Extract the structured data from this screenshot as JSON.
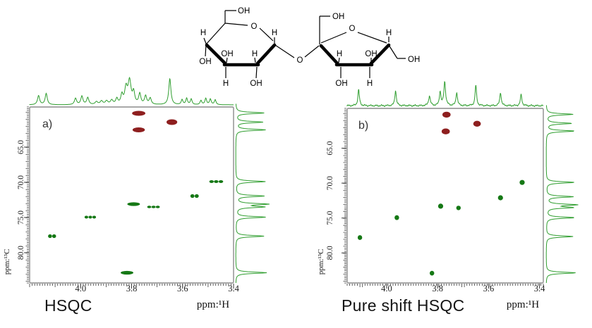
{
  "page": {
    "background": "#ffffff"
  },
  "style": {
    "trace_green": "#2f9e2f",
    "peak_red": "#8e1f1f",
    "peak_green": "#157815",
    "frame_gray": "#8c8c8c",
    "tick_color": "#3a3a3a",
    "bond_color": "#000000"
  },
  "molecule": {
    "name": "sucrose (glucopyranosyl-fructofuranoside) structure",
    "labels": [
      {
        "text": "OH"
      },
      {
        "text": "H"
      },
      {
        "text": "O"
      },
      {
        "text": "H"
      },
      {
        "text": "OH"
      },
      {
        "text": "OH"
      },
      {
        "text": "H"
      },
      {
        "text": "H"
      },
      {
        "text": "OH"
      },
      {
        "text": "O"
      },
      {
        "text": "OH"
      },
      {
        "text": "O"
      },
      {
        "text": "H"
      },
      {
        "text": "H"
      },
      {
        "text": "OH"
      },
      {
        "text": "OH"
      },
      {
        "text": "OH"
      },
      {
        "text": "H"
      }
    ]
  },
  "chart_data": [
    {
      "id": "a",
      "type": "scatter",
      "panel_label": "a)",
      "title": "HSQC",
      "xlabel": "ppm:¹H",
      "ylabel": "ppm:¹³C",
      "xlim": [
        4.2,
        3.4
      ],
      "ylim": [
        59.3,
        84.3
      ],
      "x_ticks": [
        {
          "v": 4.0,
          "label": "4.0"
        },
        {
          "v": 3.8,
          "label": "3.8"
        },
        {
          "v": 3.6,
          "label": "3.6"
        },
        {
          "v": 3.4,
          "label": "3.4"
        }
      ],
      "y_ticks": [
        {
          "v": 65.0,
          "label": "65.0"
        },
        {
          "v": 70.0,
          "label": "70.0"
        },
        {
          "v": 75.0,
          "label": "75.0"
        },
        {
          "v": 80.0,
          "label": "80.0"
        }
      ],
      "series": [
        {
          "name": "CH2 cross-peaks (opposite phase)",
          "color": "#8e1f1f",
          "points": [
            {
              "x": 3.772,
              "y": 60.2,
              "n": 1,
              "w": 0.052,
              "ry": 3.5
            },
            {
              "x": 3.642,
              "y": 61.45,
              "n": 1,
              "w": 0.042,
              "ry": 4.0
            },
            {
              "x": 3.772,
              "y": 62.55,
              "n": 1,
              "w": 0.048,
              "ry": 3.5
            }
          ]
        },
        {
          "name": "CH cross-peaks",
          "color": "#157815",
          "points": [
            {
              "x": 3.468,
              "y": 69.9,
              "n": 3,
              "w": 0.055,
              "ry": 2.0
            },
            {
              "x": 3.553,
              "y": 71.95,
              "n": 2,
              "w": 0.034,
              "ry": 2.6
            },
            {
              "x": 3.792,
              "y": 73.1,
              "n": 1,
              "w": 0.05,
              "ry": 2.6
            },
            {
              "x": 3.714,
              "y": 73.5,
              "n": 3,
              "w": 0.05,
              "ry": 1.8
            },
            {
              "x": 3.962,
              "y": 74.95,
              "n": 3,
              "w": 0.046,
              "ry": 2.0
            },
            {
              "x": 4.112,
              "y": 77.65,
              "n": 2,
              "w": 0.032,
              "ry": 2.6
            },
            {
              "x": 3.818,
              "y": 82.85,
              "n": 1,
              "w": 0.05,
              "ry": 2.6
            }
          ]
        }
      ],
      "top_trace": {
        "color": "#2f9e2f",
        "noise": false,
        "peaks": [
          {
            "x": 4.165,
            "h": 13,
            "w": 0.005
          },
          {
            "x": 4.135,
            "h": 16,
            "w": 0.005
          },
          {
            "x": 4.02,
            "h": 9,
            "w": 0.005
          },
          {
            "x": 3.995,
            "h": 12,
            "w": 0.005
          },
          {
            "x": 3.972,
            "h": 10,
            "w": 0.005
          },
          {
            "x": 3.938,
            "h": 4,
            "w": 0.006
          },
          {
            "x": 3.918,
            "h": 5,
            "w": 0.006
          },
          {
            "x": 3.898,
            "h": 5,
            "w": 0.006
          },
          {
            "x": 3.878,
            "h": 6,
            "w": 0.006
          },
          {
            "x": 3.858,
            "h": 8,
            "w": 0.005
          },
          {
            "x": 3.838,
            "h": 13,
            "w": 0.005
          },
          {
            "x": 3.822,
            "h": 22,
            "w": 0.006
          },
          {
            "x": 3.808,
            "h": 33,
            "w": 0.007
          },
          {
            "x": 3.792,
            "h": 16,
            "w": 0.005
          },
          {
            "x": 3.768,
            "h": 15,
            "w": 0.005
          },
          {
            "x": 3.745,
            "h": 12,
            "w": 0.005
          },
          {
            "x": 3.727,
            "h": 9,
            "w": 0.005
          },
          {
            "x": 3.65,
            "h": 37,
            "w": 0.005
          },
          {
            "x": 3.602,
            "h": 7,
            "w": 0.004
          },
          {
            "x": 3.584,
            "h": 9,
            "w": 0.004
          },
          {
            "x": 3.566,
            "h": 8,
            "w": 0.004
          },
          {
            "x": 3.528,
            "h": 6,
            "w": 0.004
          },
          {
            "x": 3.509,
            "h": 9,
            "w": 0.004
          },
          {
            "x": 3.491,
            "h": 8,
            "w": 0.004
          },
          {
            "x": 3.472,
            "h": 7,
            "w": 0.004
          }
        ]
      },
      "side_trace": {
        "color": "#2f9e2f",
        "peaks": [
          {
            "y": 60.15,
            "len": 40
          },
          {
            "y": 61.45,
            "len": 38
          },
          {
            "y": 62.55,
            "len": 42
          },
          {
            "y": 69.9,
            "len": 42
          },
          {
            "y": 71.95,
            "len": 40
          },
          {
            "y": 73.1,
            "len": 44
          },
          {
            "y": 73.5,
            "len": 38
          },
          {
            "y": 74.95,
            "len": 42
          },
          {
            "y": 77.65,
            "len": 40
          },
          {
            "y": 82.85,
            "len": 44
          }
        ]
      }
    },
    {
      "id": "b",
      "type": "scatter",
      "panel_label": "b)",
      "title": "Pure shift HSQC",
      "xlabel": "ppm:¹H",
      "ylabel": "ppm:¹³C",
      "xlim": [
        4.155,
        3.385
      ],
      "ylim": [
        59.3,
        84.3
      ],
      "x_ticks": [
        {
          "v": 4.0,
          "label": "4.0"
        },
        {
          "v": 3.8,
          "label": "3.8"
        },
        {
          "v": 3.6,
          "label": "3.6"
        },
        {
          "v": 3.4,
          "label": "3.4"
        }
      ],
      "y_ticks": [
        {
          "v": 65.0,
          "label": "65.0"
        },
        {
          "v": 70.0,
          "label": "70.0"
        },
        {
          "v": 75.0,
          "label": "75.0"
        },
        {
          "v": 80.0,
          "label": "80.0"
        }
      ],
      "series": [
        {
          "name": "CH2 cross-peaks (opposite phase)",
          "color": "#8e1f1f",
          "points": [
            {
              "x": 3.765,
              "y": 60.2,
              "n": 1,
              "w": 0.032,
              "ry": 4.2
            },
            {
              "x": 3.645,
              "y": 61.5,
              "n": 1,
              "w": 0.03,
              "ry": 4.2
            },
            {
              "x": 3.768,
              "y": 62.6,
              "n": 1,
              "w": 0.032,
              "ry": 4.2
            }
          ]
        },
        {
          "name": "CH cross-peaks",
          "color": "#157815",
          "points": [
            {
              "x": 3.468,
              "y": 69.9,
              "n": 1,
              "w": 0.02,
              "ry": 3.6
            },
            {
              "x": 3.553,
              "y": 72.1,
              "n": 1,
              "w": 0.02,
              "ry": 3.6
            },
            {
              "x": 3.788,
              "y": 73.3,
              "n": 1,
              "w": 0.02,
              "ry": 3.6
            },
            {
              "x": 3.718,
              "y": 73.55,
              "n": 1,
              "w": 0.018,
              "ry": 3.2
            },
            {
              "x": 3.96,
              "y": 74.95,
              "n": 1,
              "w": 0.018,
              "ry": 3.4
            },
            {
              "x": 4.105,
              "y": 77.8,
              "n": 1,
              "w": 0.018,
              "ry": 3.4
            },
            {
              "x": 3.822,
              "y": 82.9,
              "n": 1,
              "w": 0.018,
              "ry": 3.4
            }
          ]
        }
      ],
      "top_trace": {
        "color": "#2f9e2f",
        "noise": true,
        "peaks": [
          {
            "x": 4.11,
            "h": 23,
            "w": 0.0035
          },
          {
            "x": 3.965,
            "h": 22,
            "w": 0.0035
          },
          {
            "x": 3.832,
            "h": 14,
            "w": 0.004
          },
          {
            "x": 3.79,
            "h": 20,
            "w": 0.0035
          },
          {
            "x": 3.772,
            "h": 34,
            "w": 0.004
          },
          {
            "x": 3.725,
            "h": 19,
            "w": 0.0035
          },
          {
            "x": 3.65,
            "h": 29,
            "w": 0.0035
          },
          {
            "x": 3.553,
            "h": 19,
            "w": 0.0035
          },
          {
            "x": 3.472,
            "h": 16,
            "w": 0.0035
          }
        ]
      },
      "side_trace": {
        "color": "#2f9e2f",
        "peaks": [
          {
            "y": 60.15,
            "len": 38
          },
          {
            "y": 61.45,
            "len": 36
          },
          {
            "y": 62.55,
            "len": 40
          },
          {
            "y": 69.9,
            "len": 40
          },
          {
            "y": 71.95,
            "len": 38
          },
          {
            "y": 73.1,
            "len": 42
          },
          {
            "y": 73.5,
            "len": 36
          },
          {
            "y": 74.95,
            "len": 40
          },
          {
            "y": 77.65,
            "len": 38
          },
          {
            "y": 82.85,
            "len": 42
          }
        ]
      }
    }
  ]
}
